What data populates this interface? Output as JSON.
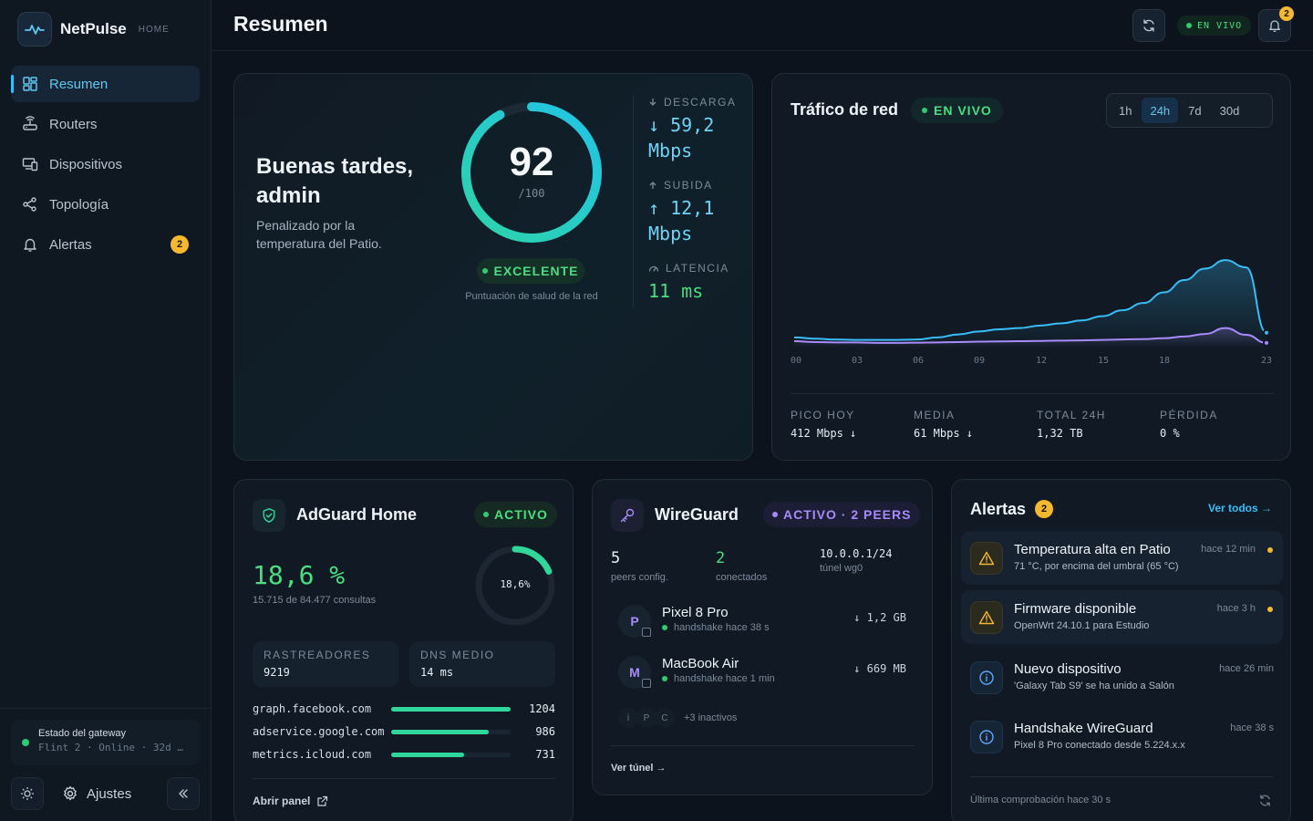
{
  "brand": {
    "name": "NetPulse",
    "tag": "HOME"
  },
  "nav": {
    "items": [
      {
        "label": "Resumen",
        "icon": "dashboard-icon",
        "active": true
      },
      {
        "label": "Routers",
        "icon": "router-icon"
      },
      {
        "label": "Dispositivos",
        "icon": "devices-icon"
      },
      {
        "label": "Topología",
        "icon": "topology-icon"
      },
      {
        "label": "Alertas",
        "icon": "bell-icon",
        "badge": "2"
      }
    ]
  },
  "gateway": {
    "title": "Estado del gateway",
    "sub": "Flint 2 · Online · 32d 4h"
  },
  "sidebar_footer": {
    "settings": "Ajustes"
  },
  "header": {
    "title": "Resumen",
    "live": "EN VIVO",
    "bell_badge": "2"
  },
  "health": {
    "greeting": "Buenas tardes, admin",
    "subtitle": "Penalizado por la temperatura del Patio.",
    "score": "92",
    "score_max": "/100",
    "score_fraction": 0.92,
    "status": "EXCELENTE",
    "caption": "Puntuación de salud de la red",
    "download_label": "DESCARGA",
    "download_value": "↓ 59,2 Mbps",
    "upload_label": "SUBIDA",
    "upload_value": "↑ 12,1 Mbps",
    "latency_label": "LATENCIA",
    "latency_value": "11 ms"
  },
  "traffic": {
    "title": "Tráfico de red",
    "live": "EN VIVO",
    "ranges": [
      "1h",
      "24h",
      "7d",
      "30d"
    ],
    "active_range": "24h",
    "stats": [
      {
        "label": "PICO HOY",
        "value": "412 Mbps ↓"
      },
      {
        "label": "MEDIA",
        "value": "61 Mbps ↓"
      },
      {
        "label": "TOTAL 24H",
        "value": "1,32 TB"
      },
      {
        "label": "PÉRDIDA",
        "value": "0 %"
      }
    ]
  },
  "chart_data": {
    "type": "area",
    "x_ticks": [
      "00",
      "03",
      "06",
      "09",
      "12",
      "15",
      "18",
      "23"
    ],
    "x": [
      0,
      1,
      2,
      3,
      4,
      5,
      6,
      7,
      8,
      9,
      10,
      11,
      12,
      13,
      14,
      15,
      16,
      17,
      18,
      19,
      20,
      21,
      22,
      23
    ],
    "series": [
      {
        "color": "#38bdf8",
        "values": [
          48,
          42,
          38,
          36,
          36,
          36,
          38,
          48,
          62,
          76,
          86,
          92,
          104,
          114,
          128,
          148,
          176,
          210,
          260,
          318,
          372,
          412,
          378,
          70
        ]
      },
      {
        "color": "#a78bfa",
        "values": [
          30,
          26,
          24,
          24,
          22,
          22,
          23,
          24,
          26,
          28,
          29,
          30,
          31,
          33,
          34,
          36,
          38,
          40,
          44,
          52,
          64,
          92,
          60,
          22
        ]
      }
    ],
    "ylim": [
      0,
      430
    ]
  },
  "adguard": {
    "title": "AdGuard Home",
    "status": "ACTIVO",
    "pct": "18,6 %",
    "pct_fraction": 0.186,
    "ring_label": "18,6%",
    "sub": "15.715 de 84.477 consultas",
    "trackers_label": "RASTREADORES",
    "trackers_value": "9219",
    "dns_label": "DNS MEDIO",
    "dns_value": "14 ms",
    "domains": [
      {
        "name": "graph.facebook.com",
        "count": "1204",
        "value": 1204
      },
      {
        "name": "adservice.google.com",
        "count": "986",
        "value": 986
      },
      {
        "name": "metrics.icloud.com",
        "count": "731",
        "value": 731
      }
    ],
    "link": "Abrir panel"
  },
  "wireguard": {
    "title": "WireGuard",
    "status": "ACTIVO · 2 PEERS",
    "peers_n": "5",
    "peers_l": "peers config.",
    "conn_n": "2",
    "conn_l": "conectados",
    "net_n": "10.0.0.1/24",
    "net_l": "túnel wg0",
    "peers": [
      {
        "initial": "P",
        "name": "Pixel 8 Pro",
        "sub": "handshake hace 38 s",
        "rx": "↓ 1,2 GB"
      },
      {
        "initial": "M",
        "name": "MacBook Air",
        "sub": "handshake hace 1 min",
        "rx": "↓ 669 MB"
      }
    ],
    "inactive_initials": [
      "i",
      "P",
      "C"
    ],
    "inactive_text": "+3 inactivos",
    "link": "Ver túnel →"
  },
  "alerts": {
    "title": "Alertas",
    "badge": "2",
    "view_all": "Ver todos →",
    "items": [
      {
        "title": "Temperatura alta en Patio",
        "desc": "71 °C, por encima del umbral (65 °C)",
        "time": "hace 12 min",
        "kind": "warning-icon"
      },
      {
        "title": "Firmware disponible",
        "desc": "OpenWrt 24.10.1 para Estudio",
        "time": "hace 3 h",
        "kind": "warning-icon"
      },
      {
        "title": "Nuevo dispositivo",
        "desc": "'Galaxy Tab S9' se ha unido a Salón",
        "time": "hace 26 min",
        "kind": "info-icon"
      },
      {
        "title": "Handshake WireGuard",
        "desc": "Pixel 8 Pro conectado desde 5.224.x.x",
        "time": "hace 38 s",
        "kind": "info-icon"
      }
    ],
    "footer": "Última comprobación hace 30 s"
  }
}
